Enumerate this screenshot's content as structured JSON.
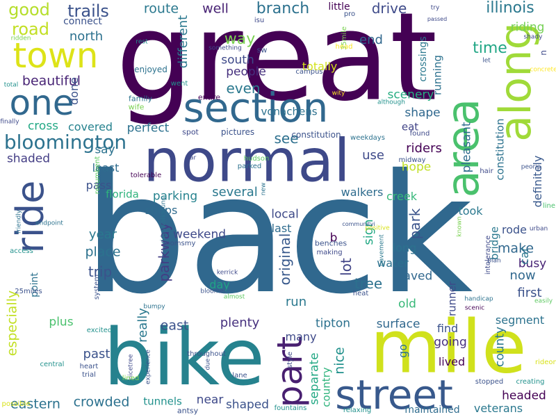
{
  "colors": {
    "background": "#ffffff",
    "palette": [
      "#440154",
      "#3b528b",
      "#21918c",
      "#5ec962",
      "#fde725"
    ]
  },
  "words": [
    {
      "text": "back",
      "c": "#30688e",
      "r": 0
    },
    {
      "text": "great",
      "c": "#440154",
      "r": 0
    },
    {
      "text": "bike",
      "c": "#26828e",
      "r": 0
    },
    {
      "text": "mile",
      "c": "#d0e11c",
      "r": 0
    },
    {
      "text": "normal",
      "c": "#3e4989",
      "r": 0
    },
    {
      "text": "section",
      "c": "#31688e",
      "r": 0
    },
    {
      "text": "along",
      "c": "#a0da39",
      "r": 270
    },
    {
      "text": "area",
      "c": "#4ac16d",
      "r": 270
    },
    {
      "text": "town",
      "c": "#dde318",
      "r": 0
    },
    {
      "text": "one",
      "c": "#31688e",
      "r": 0
    },
    {
      "text": "ride",
      "c": "#3b528b",
      "r": 270
    },
    {
      "text": "street",
      "c": "#38598c",
      "r": 0
    },
    {
      "text": "part",
      "c": "#481f70",
      "r": 270
    },
    {
      "text": "bloomington",
      "c": "#2c728e",
      "r": 0
    },
    {
      "text": "good",
      "c": "#b5de2b",
      "r": 0
    },
    {
      "text": "road",
      "c": "#c2df23",
      "r": 0
    },
    {
      "text": "trails",
      "c": "#3b528b",
      "r": 0
    },
    {
      "text": "route",
      "c": "#2a788e",
      "r": 0
    },
    {
      "text": "well",
      "c": "#482374",
      "r": 0
    },
    {
      "text": "branch",
      "c": "#2c718e",
      "r": 0
    },
    {
      "text": "little",
      "c": "#440154",
      "r": 0
    },
    {
      "text": "drive",
      "c": "#3e4a89",
      "r": 0
    },
    {
      "text": "illinois",
      "c": "#2a788e",
      "r": 0
    },
    {
      "text": "connect",
      "c": "#3b528b",
      "r": 0
    },
    {
      "text": "north",
      "c": "#2c718e",
      "r": 0
    },
    {
      "text": "way",
      "c": "#7ad151",
      "r": 0
    },
    {
      "text": "end",
      "c": "#31688e",
      "r": 0
    },
    {
      "text": "riding",
      "c": "#75d054",
      "r": 0
    },
    {
      "text": "time",
      "c": "#21a685",
      "r": 0
    },
    {
      "text": "south",
      "c": "#3e4989",
      "r": 0
    },
    {
      "text": "people",
      "c": "#46307e",
      "r": 0
    },
    {
      "text": "totally",
      "c": "#d2e21b",
      "r": 0
    },
    {
      "text": "beautiful",
      "c": "#482475",
      "r": 0
    },
    {
      "text": "even",
      "c": "#2a788e",
      "r": 0
    },
    {
      "text": "scenery",
      "c": "#27ad81",
      "r": 0
    },
    {
      "text": "shape",
      "c": "#30688e",
      "r": 0
    },
    {
      "text": "eat",
      "c": "#414487",
      "r": 0
    },
    {
      "text": "cross",
      "c": "#22a884",
      "r": 0
    },
    {
      "text": "covered",
      "c": "#26828e",
      "r": 0
    },
    {
      "text": "perfect",
      "c": "#2c718e",
      "r": 0
    },
    {
      "text": "see",
      "c": "#2d708e",
      "r": 0
    },
    {
      "text": "use",
      "c": "#3e4989",
      "r": 0
    },
    {
      "text": "riders",
      "c": "#440154",
      "r": 0
    },
    {
      "text": "say",
      "c": "#2c728e",
      "r": 0
    },
    {
      "text": "shaded",
      "c": "#433d84",
      "r": 0
    },
    {
      "text": "least",
      "c": "#2f6c8e",
      "r": 0
    },
    {
      "text": "hope",
      "c": "#c0df25",
      "r": 0
    },
    {
      "text": "pass",
      "c": "#3b528b",
      "r": 0
    },
    {
      "text": "florida",
      "c": "#2eb37c",
      "r": 0
    },
    {
      "text": "parking",
      "c": "#26828e",
      "r": 0
    },
    {
      "text": "several",
      "c": "#2a788e",
      "r": 0
    },
    {
      "text": "walkers",
      "c": "#2f6c8e",
      "r": 0
    },
    {
      "text": "creek",
      "c": "#35b779",
      "r": 0
    },
    {
      "text": "park",
      "c": "#3a538b",
      "r": 270
    },
    {
      "text": "took",
      "c": "#2a788e",
      "r": 0
    },
    {
      "text": "shops",
      "c": "#2f6b8e",
      "r": 0
    },
    {
      "text": "weekend",
      "c": "#3e4989",
      "r": 0
    },
    {
      "text": "local",
      "c": "#3e4a89",
      "r": 0
    },
    {
      "text": "last",
      "c": "#2f6c8e",
      "r": 0
    },
    {
      "text": "rode",
      "c": "#3b528b",
      "r": 0
    },
    {
      "text": "year",
      "c": "#2a788e",
      "r": 0
    },
    {
      "text": "place",
      "c": "#2c728e",
      "r": 0
    },
    {
      "text": "b",
      "c": "#440154",
      "r": 0
    },
    {
      "text": "long",
      "c": "#2c728e",
      "r": 0
    },
    {
      "text": "make",
      "c": "#31688e",
      "r": 0
    },
    {
      "text": "trip",
      "c": "#3b528b",
      "r": 0
    },
    {
      "text": "water",
      "c": "#2c718e",
      "r": 0
    },
    {
      "text": "busy",
      "c": "#482475",
      "r": 0
    },
    {
      "text": "now",
      "c": "#31688e",
      "r": 0
    },
    {
      "text": "day",
      "c": "#20a486",
      "r": 0
    },
    {
      "text": "tree",
      "c": "#2c718e",
      "r": 0
    },
    {
      "text": "paved",
      "c": "#31688e",
      "r": 0
    },
    {
      "text": "first",
      "c": "#3b528b",
      "r": 0
    },
    {
      "text": "run",
      "c": "#2a788e",
      "r": 0
    },
    {
      "text": "old",
      "c": "#37b878",
      "r": 0
    },
    {
      "text": "east",
      "c": "#3b528b",
      "r": 0
    },
    {
      "text": "plenty",
      "c": "#46307e",
      "r": 0
    },
    {
      "text": "tipton",
      "c": "#2c718e",
      "r": 0
    },
    {
      "text": "surface",
      "c": "#31688e",
      "r": 0
    },
    {
      "text": "segment",
      "c": "#2c728e",
      "r": 0
    },
    {
      "text": "plus",
      "c": "#4ac16d",
      "r": 0
    },
    {
      "text": "find",
      "c": "#3b528b",
      "r": 0
    },
    {
      "text": "many",
      "c": "#3e4989",
      "r": 0
    },
    {
      "text": "going",
      "c": "#46307e",
      "r": 0
    },
    {
      "text": "past",
      "c": "#3b528b",
      "r": 0
    },
    {
      "text": "lived",
      "c": "#440154",
      "r": 0
    },
    {
      "text": "headed",
      "c": "#440154",
      "r": 0
    },
    {
      "text": "near",
      "c": "#3e4989",
      "r": 0
    },
    {
      "text": "crowded",
      "c": "#2c718e",
      "r": 0
    },
    {
      "text": "tunnels",
      "c": "#21918c",
      "r": 0
    },
    {
      "text": "shaped",
      "c": "#3b528b",
      "r": 0
    },
    {
      "text": "eastern",
      "c": "#2c728e",
      "r": 0
    },
    {
      "text": "veterans",
      "c": "#2a788e",
      "r": 0
    },
    {
      "text": "maintained",
      "c": "#2f6c8e",
      "r": 0
    },
    {
      "text": "especially",
      "c": "#c2df23",
      "r": 270
    },
    {
      "text": "point",
      "c": "#2c728e",
      "r": 270
    },
    {
      "text": "parkway",
      "c": "#433d84",
      "r": 270
    },
    {
      "text": "really",
      "c": "#2a788e",
      "r": 270
    },
    {
      "text": "original",
      "c": "#38598c",
      "r": 270
    },
    {
      "text": "lot",
      "c": "#414487",
      "r": 270
    },
    {
      "text": "nice",
      "c": "#21918c",
      "r": 270
    },
    {
      "text": "sign",
      "c": "#22a884",
      "r": 270
    },
    {
      "text": "separate",
      "c": "#22a884",
      "r": 270
    },
    {
      "text": "country",
      "c": "#2eb37c",
      "r": 270
    },
    {
      "text": "go",
      "c": "#2c728e",
      "r": 270
    },
    {
      "text": "crossings",
      "c": "#2a788e",
      "r": 270
    },
    {
      "text": "running",
      "c": "#2c718e",
      "r": 270
    },
    {
      "text": "pleasant",
      "c": "#2f6b8e",
      "r": 270
    },
    {
      "text": "constitution",
      "c": "#2c728e",
      "r": 270
    },
    {
      "text": "definitely",
      "c": "#38588c",
      "r": 270
    },
    {
      "text": "car",
      "c": "#2a778e",
      "r": 270
    },
    {
      "text": "bridge",
      "c": "#2a788e",
      "r": 270
    },
    {
      "text": "county",
      "c": "#2a788e",
      "r": 270
    },
    {
      "text": "runner",
      "c": "#3e4a89",
      "r": 270
    },
    {
      "text": "different",
      "c": "#2a788e",
      "r": 270
    },
    {
      "text": "done",
      "c": "#3b528b",
      "r": 270
    },
    {
      "text": "n",
      "c": "#3e4989",
      "r": 270
    },
    {
      "text": "sw",
      "c": "#3b528b",
      "r": 0
    },
    {
      "text": "enjoyed",
      "c": "#2c728e",
      "r": 0
    },
    {
      "text": "family",
      "c": "#2c728e",
      "r": 0
    },
    {
      "text": "wife",
      "c": "#7ad151",
      "r": 0
    },
    {
      "text": "entire",
      "c": "#440154",
      "r": 0
    },
    {
      "text": "vonachens",
      "c": "#2c718e",
      "r": 0
    },
    {
      "text": "spot",
      "c": "#3e4989",
      "r": 0
    },
    {
      "text": "pictures",
      "c": "#3b528b",
      "r": 0
    },
    {
      "text": "constitution",
      "c": "#3b528b",
      "r": 0
    },
    {
      "text": "found",
      "c": "#3e4989",
      "r": 0
    },
    {
      "text": "weekdays",
      "c": "#2c728e",
      "r": 0
    },
    {
      "text": "hudson",
      "c": "#5ec962",
      "r": 0
    },
    {
      "text": "parked",
      "c": "#2c718e",
      "r": 0
    },
    {
      "text": "midway",
      "c": "#3b528b",
      "r": 0
    },
    {
      "text": "hair",
      "c": "#3e4989",
      "r": 0
    },
    {
      "text": "peoria",
      "c": "#3b528b",
      "r": 0
    },
    {
      "text": "line",
      "c": "#4ac16d",
      "r": 0
    },
    {
      "text": "recumbent",
      "c": "#5ec962",
      "r": 270
    },
    {
      "text": "tolerable",
      "c": "#440154",
      "r": 0
    },
    {
      "text": "far",
      "c": "#3e4989",
      "r": 0
    },
    {
      "text": "new",
      "c": "#2c728e",
      "r": 270
    },
    {
      "text": "communityi",
      "c": "#3b528b",
      "r": 0
    },
    {
      "text": "positive",
      "c": "#d8e219",
      "r": 0
    },
    {
      "text": "pavement",
      "c": "#2a788e",
      "r": 270
    },
    {
      "text": "known",
      "c": "#7ad151",
      "r": 270
    },
    {
      "text": "urban",
      "c": "#3e4989",
      "r": 0
    },
    {
      "text": "friendly",
      "c": "#2c728e",
      "r": 270
    },
    {
      "text": "endpoint",
      "c": "#2c728e",
      "r": 0
    },
    {
      "text": "rideswalksruns",
      "c": "#2c728e",
      "r": 270
    },
    {
      "text": "roomsmy",
      "c": "#3b528b",
      "r": 0
    },
    {
      "text": "making",
      "c": "#3e4989",
      "r": 0
    },
    {
      "text": "benches",
      "c": "#3b528b",
      "r": 0
    },
    {
      "text": "intolerance",
      "c": "#3e4989",
      "r": 270
    },
    {
      "text": "plan",
      "c": "#3b528b",
      "r": 0
    },
    {
      "text": "access",
      "c": "#21918c",
      "r": 0
    },
    {
      "text": "kerrick",
      "c": "#3e4989",
      "r": 0
    },
    {
      "text": "almost",
      "c": "#5ec962",
      "r": 0
    },
    {
      "text": "25miles",
      "c": "#3b528b",
      "r": 0
    },
    {
      "text": "system",
      "c": "#3b528b",
      "r": 270
    },
    {
      "text": "bloomer",
      "c": "#3b528b",
      "r": 0
    },
    {
      "text": "heat",
      "c": "#3b528b",
      "r": 0
    },
    {
      "text": "handicap",
      "c": "#2c728e",
      "r": 0
    },
    {
      "text": "scenic",
      "c": "#440154",
      "r": 0
    },
    {
      "text": "easily",
      "c": "#5ec962",
      "r": 0
    },
    {
      "text": "bumpy",
      "c": "#2c728e",
      "r": 0
    },
    {
      "text": "excited",
      "c": "#21918c",
      "r": 0
    },
    {
      "text": "throughout",
      "c": "#3b528b",
      "r": 0
    },
    {
      "text": "due",
      "c": "#3b528b",
      "r": 270
    },
    {
      "text": "nicetree",
      "c": "#3e4989",
      "r": 270
    },
    {
      "text": "experience",
      "c": "#3b528b",
      "r": 270
    },
    {
      "text": "style",
      "c": "#3e4989",
      "r": 270
    },
    {
      "text": "rideone",
      "c": "#d8e219",
      "r": 0
    },
    {
      "text": "central",
      "c": "#21918c",
      "r": 0
    },
    {
      "text": "heart",
      "c": "#3b528b",
      "r": 0
    },
    {
      "text": "trial",
      "c": "#3b528b",
      "r": 0
    },
    {
      "text": "lined",
      "c": "#7ad151",
      "r": 0
    },
    {
      "text": "lane",
      "c": "#3b528b",
      "r": 0
    },
    {
      "text": "stopped",
      "c": "#3b528b",
      "r": 0
    },
    {
      "text": "creating",
      "c": "#21918c",
      "r": 0
    },
    {
      "text": "possible",
      "c": "#d8e219",
      "r": 0
    },
    {
      "text": "antsy",
      "c": "#3b528b",
      "r": 0
    },
    {
      "text": "fountains",
      "c": "#21918c",
      "r": 0
    },
    {
      "text": "relaxing",
      "c": "#21918c",
      "r": 0
    },
    {
      "text": "rest",
      "c": "#21918c",
      "r": 0
    },
    {
      "text": "isu",
      "c": "#3e4989",
      "r": 0
    },
    {
      "text": "pro",
      "c": "#3b528b",
      "r": 0
    },
    {
      "text": "try",
      "c": "#3e4989",
      "r": 0
    },
    {
      "text": "passed",
      "c": "#3e4989",
      "r": 0
    },
    {
      "text": "shady",
      "c": "#3e4989",
      "r": 0
    },
    {
      "text": "concrete",
      "c": "#fde725",
      "r": 0
    },
    {
      "text": "35mile",
      "c": "#7ad151",
      "r": 270
    },
    {
      "text": "head",
      "c": "#fde725",
      "r": 0
    },
    {
      "text": "let",
      "c": "#3b528b",
      "r": 0
    },
    {
      "text": "ridden",
      "c": "#7ad151",
      "r": 0
    },
    {
      "text": "something",
      "c": "#3e4989",
      "r": 0
    },
    {
      "text": "campus",
      "c": "#3b528b",
      "r": 0
    },
    {
      "text": "total",
      "c": "#21918c",
      "r": 0
    },
    {
      "text": "went",
      "c": "#21918c",
      "r": 0
    },
    {
      "text": "wity",
      "c": "#fde725",
      "r": 0
    },
    {
      "text": "although",
      "c": "#21918c",
      "r": 0
    },
    {
      "text": "finally",
      "c": "#3e4989",
      "r": 0
    },
    {
      "text": "bit",
      "c": "#3b528b",
      "r": 0
    }
  ]
}
